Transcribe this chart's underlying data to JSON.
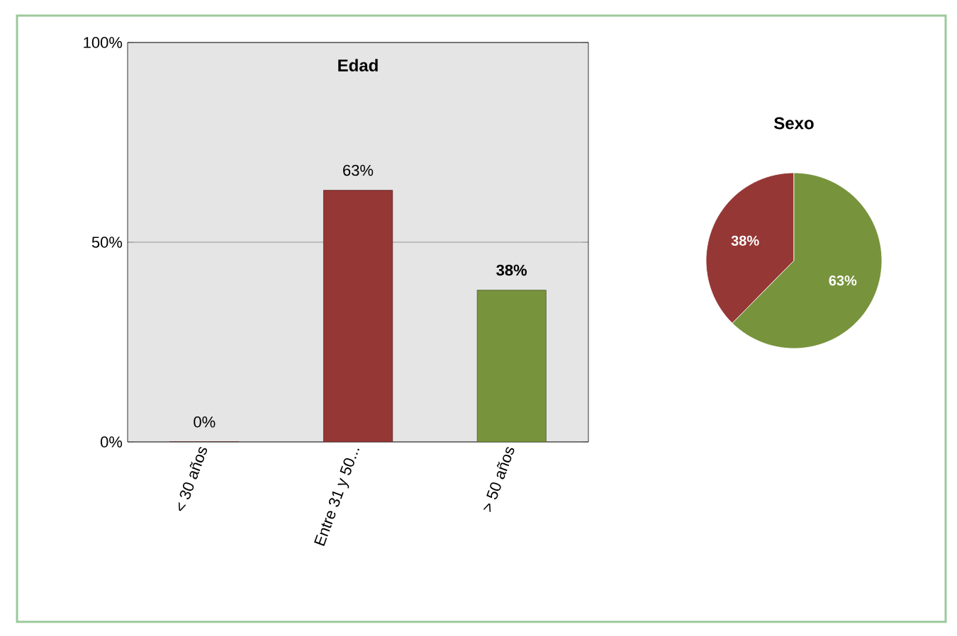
{
  "chart_data": [
    {
      "type": "bar",
      "title": "Edad",
      "categories": [
        "< 30 años",
        "Entre 31 y 50...",
        "> 50 años"
      ],
      "values": [
        0,
        63,
        38
      ],
      "colors": [
        "#953735",
        "#953735",
        "#77933c"
      ],
      "ylim": [
        0,
        100
      ],
      "yticks": [
        {
          "value": 0,
          "label": "0%"
        },
        {
          "value": 50,
          "label": "50%"
        },
        {
          "value": 100,
          "label": "100%"
        }
      ],
      "grid": "y",
      "value_labels": [
        "0%",
        "63%",
        "**38%**"
      ]
    },
    {
      "type": "pie",
      "title": "Sexo",
      "categories": [
        null,
        null
      ],
      "values": [
        38,
        63
      ],
      "colors": [
        "#953735",
        "#77933c"
      ],
      "value_labels": [
        "38%",
        "63%"
      ]
    }
  ]
}
